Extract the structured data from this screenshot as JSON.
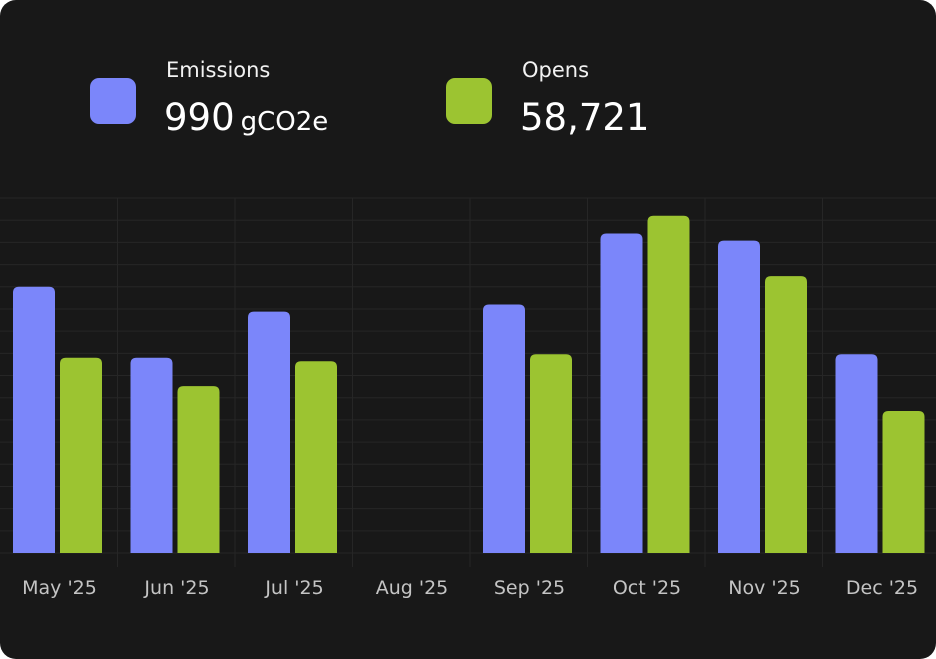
{
  "legend": {
    "emissions": {
      "label": "Emissions",
      "value": "990",
      "unit": "gCO2e",
      "color": "#7b86fa"
    },
    "opens": {
      "label": "Opens",
      "value": "58,721",
      "color": "#9cc431"
    }
  },
  "chart_data": {
    "type": "bar",
    "categories": [
      "May '25",
      "Jun '25",
      "Jul '25",
      "Aug '25",
      "Sep '25",
      "Oct '25",
      "Nov '25",
      "Dec '25"
    ],
    "series": [
      {
        "name": "Emissions",
        "color": "#7b86fa",
        "values": [
          75,
          55,
          68,
          0,
          70,
          90,
          88,
          56
        ]
      },
      {
        "name": "Opens",
        "color": "#9cc431",
        "values": [
          55,
          47,
          54,
          0,
          56,
          95,
          78,
          40
        ]
      }
    ],
    "ylim": [
      0,
      100
    ],
    "grid": true,
    "legend_position": "top-left"
  }
}
